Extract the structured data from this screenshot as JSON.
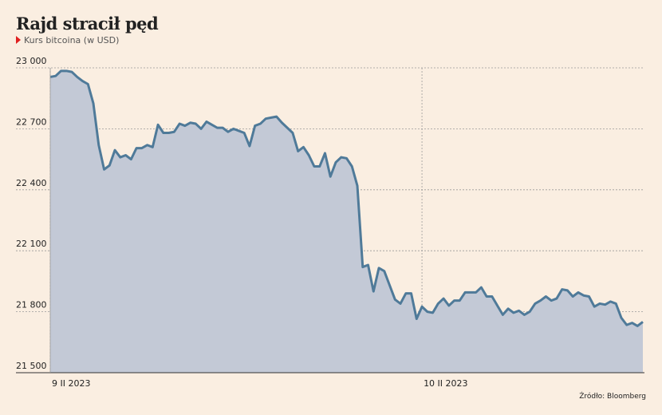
{
  "chart_data": {
    "type": "area",
    "title": "Rajd stracił pęd",
    "subtitle": "Kurs bitcoina (w USD)",
    "source": "Źródło: Bloomberg",
    "categories": [
      "9 II 2023",
      null,
      null,
      null,
      null,
      null,
      null,
      null,
      null,
      null,
      null,
      null,
      null,
      null,
      null,
      null,
      null,
      null,
      null,
      null,
      null,
      null,
      null,
      null,
      null,
      null,
      null,
      null,
      null,
      null,
      null,
      null,
      null,
      null,
      null,
      null,
      null,
      null,
      null,
      null,
      null,
      null,
      null,
      null,
      null,
      null,
      null,
      null,
      null,
      null,
      null,
      null,
      null,
      null,
      null,
      null,
      null,
      null,
      null,
      null,
      null,
      null,
      null,
      null,
      null,
      null,
      null,
      null,
      null,
      "10 II 2023",
      null,
      null,
      null,
      null,
      null,
      null,
      null,
      null,
      null,
      null,
      null,
      null,
      null,
      null,
      null,
      null,
      null,
      null,
      null,
      null,
      null,
      null,
      null,
      null,
      null,
      null,
      null,
      null,
      null,
      null,
      null,
      null,
      null,
      null,
      null,
      null,
      null,
      null,
      null,
      null,
      null
    ],
    "series": [
      {
        "name": "Kurs bitcoina",
        "color": "#4f7a99",
        "fill": "#c3c9d6",
        "values": [
          22955,
          22960,
          22985,
          22985,
          22980,
          22955,
          22935,
          22920,
          22825,
          22620,
          22500,
          22520,
          22595,
          22560,
          22570,
          22550,
          22605,
          22605,
          22620,
          22610,
          22720,
          22680,
          22680,
          22685,
          22725,
          22715,
          22730,
          22725,
          22700,
          22735,
          22720,
          22705,
          22705,
          22685,
          22700,
          22690,
          22680,
          22615,
          22715,
          22725,
          22750,
          22755,
          22760,
          22730,
          22705,
          22680,
          22590,
          22610,
          22570,
          22515,
          22515,
          22580,
          22465,
          22535,
          22560,
          22555,
          22515,
          22420,
          22020,
          22030,
          21900,
          22015,
          22000,
          21930,
          21860,
          21840,
          21890,
          21890,
          21765,
          21825,
          21800,
          21795,
          21840,
          21865,
          21830,
          21855,
          21855,
          21895,
          21895,
          21895,
          21920,
          21875,
          21875,
          21830,
          21785,
          21815,
          21795,
          21805,
          21785,
          21800,
          21840,
          21855,
          21875,
          21855,
          21865,
          21910,
          21905,
          21875,
          21895,
          21880,
          21875,
          21825,
          21840,
          21835,
          21850,
          21840,
          21770,
          21735,
          21745,
          21730,
          21750
        ]
      }
    ],
    "ylim": [
      21500,
      23000
    ],
    "yticks": [
      {
        "value": 21500,
        "label": "21 500"
      },
      {
        "value": 21800,
        "label": "21 800"
      },
      {
        "value": 22100,
        "label": "22 100"
      },
      {
        "value": 22400,
        "label": "22 400"
      },
      {
        "value": 22700,
        "label": "22 700"
      },
      {
        "value": 23000,
        "label": "23 000"
      }
    ],
    "grid": true
  }
}
